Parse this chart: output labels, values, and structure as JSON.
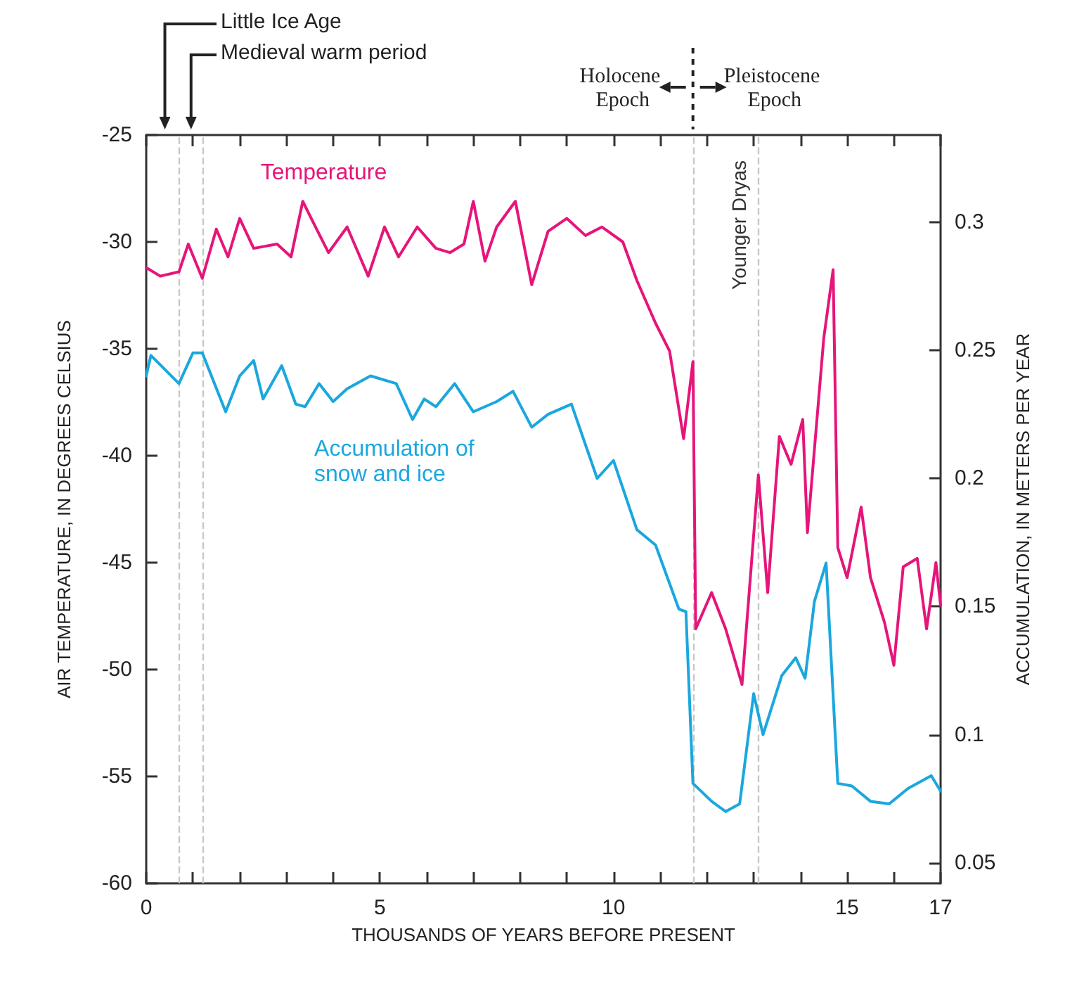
{
  "chart_data": {
    "type": "line",
    "xlabel": "THOUSANDS OF YEARS BEFORE PRESENT",
    "ylabel": "AIR TEMPERATURE, IN DEGREES CELSIUS",
    "y2label": "ACCUMULATION, IN METERS PER YEAR",
    "xlim": [
      0,
      17
    ],
    "xticks": [
      0,
      {
        "value": 1,
        "label": null
      },
      {
        "value": 2,
        "label": null
      },
      {
        "value": 3,
        "label": null
      },
      {
        "value": 4,
        "label": null
      },
      5,
      {
        "value": 6,
        "label": null
      },
      {
        "value": 7,
        "label": null
      },
      {
        "value": 8,
        "label": null
      },
      {
        "value": 9,
        "label": null
      },
      10,
      {
        "value": 11,
        "label": null
      },
      {
        "value": 12,
        "label": null
      },
      {
        "value": 13,
        "label": null
      },
      {
        "value": 14,
        "label": null
      },
      15,
      {
        "value": 16,
        "label": null
      },
      17
    ],
    "ylim": [
      -60,
      -25
    ],
    "yticks": [
      -60,
      -55,
      -50,
      -45,
      -40,
      -35,
      -30,
      -25
    ],
    "y2lim": [
      0.042,
      0.334
    ],
    "y2ticks": [
      0.05,
      0.1,
      0.15,
      0.2,
      0.25,
      0.3
    ],
    "grid": false,
    "legend": false,
    "marker": "none",
    "line_style": "solid",
    "series": [
      {
        "name": "Temperature",
        "color": "#e6157a",
        "x": [
          0,
          0.3,
          0.7,
          0.9,
          1.2,
          1.5,
          1.75,
          2.0,
          2.3,
          2.8,
          3.1,
          3.35,
          3.6,
          3.9,
          4.3,
          4.75,
          5.1,
          5.4,
          5.8,
          6.2,
          6.5,
          6.8,
          7.0,
          7.25,
          7.5,
          7.9,
          8.25,
          8.6,
          9.0,
          9.4,
          9.75,
          10.2,
          10.5,
          10.9,
          11.2,
          11.5,
          11.7,
          11.76,
          12.1,
          12.4,
          12.75,
          13.1,
          13.3,
          13.55,
          13.8,
          14.05,
          14.15,
          14.5,
          14.7,
          14.8,
          15.0,
          15.3,
          15.5,
          15.8,
          16.0,
          16.2,
          16.5,
          16.7,
          16.9,
          17
        ],
        "values": [
          -31.2,
          -31.6,
          -31.4,
          -30.1,
          -31.7,
          -29.4,
          -30.7,
          -28.9,
          -30.3,
          -30.1,
          -30.7,
          -28.1,
          -29.2,
          -30.5,
          -29.3,
          -31.6,
          -29.3,
          -30.7,
          -29.3,
          -30.3,
          -30.5,
          -30.1,
          -28.1,
          -30.9,
          -29.3,
          -28.1,
          -32.0,
          -29.5,
          -28.9,
          -29.7,
          -29.3,
          -30.0,
          -31.8,
          -33.8,
          -35.1,
          -39.2,
          -35.6,
          -48.1,
          -46.4,
          -48.1,
          -50.7,
          -40.9,
          -46.4,
          -39.1,
          -40.4,
          -38.3,
          -43.6,
          -34.5,
          -31.3,
          -44.3,
          -45.7,
          -42.4,
          -45.7,
          -47.8,
          -49.8,
          -45.2,
          -44.8,
          -48.1,
          -45.0,
          -47.0
        ]
      },
      {
        "name": "Accumulation of snow and ice",
        "color": "#1aa7de",
        "axis": "y2",
        "x": [
          0,
          0.1,
          0.7,
          1.0,
          1.2,
          1.7,
          2.0,
          2.3,
          2.5,
          2.9,
          3.2,
          3.4,
          3.7,
          4.0,
          4.3,
          4.8,
          5.35,
          5.7,
          5.95,
          6.2,
          6.6,
          7.0,
          7.5,
          7.85,
          8.25,
          8.6,
          9.1,
          9.65,
          10.0,
          10.5,
          10.9,
          11.4,
          11.55,
          11.7,
          12.1,
          12.4,
          12.7,
          13.0,
          13.2,
          13.6,
          13.9,
          14.1,
          14.3,
          14.55,
          14.8,
          15.1,
          15.5,
          15.9,
          16.3,
          16.8,
          17
        ],
        "values": [
          0.24,
          0.248,
          0.237,
          0.249,
          0.249,
          0.226,
          0.24,
          0.246,
          0.231,
          0.244,
          0.229,
          0.228,
          0.237,
          0.23,
          0.235,
          0.24,
          0.237,
          0.223,
          0.231,
          0.228,
          0.237,
          0.226,
          0.23,
          0.234,
          0.22,
          0.225,
          0.229,
          0.2,
          0.207,
          0.18,
          0.174,
          0.149,
          0.148,
          0.081,
          0.074,
          0.07,
          0.073,
          0.116,
          0.1,
          0.123,
          0.13,
          0.122,
          0.152,
          0.167,
          0.081,
          0.08,
          0.074,
          0.073,
          0.079,
          0.084,
          0.078
        ]
      }
    ],
    "ref_lines": [
      {
        "axis": "x",
        "value": 0.7,
        "color": "#c8c8c8",
        "line_style": "dashed"
      },
      {
        "axis": "x",
        "value": 1.2,
        "color": "#c8c8c8",
        "line_style": "dashed"
      },
      {
        "axis": "x",
        "value": 11.7,
        "color": "#c8c8c8",
        "line_style": "dashed"
      },
      {
        "axis": "x",
        "value": 13.1,
        "color": "#c8c8c8",
        "line_style": "dashed",
        "label": "Younger Dryas"
      }
    ],
    "annotations": [
      "Little Ice Age",
      "Medieval warm period",
      "Holocene Epoch",
      "Pleistocene Epoch"
    ]
  }
}
